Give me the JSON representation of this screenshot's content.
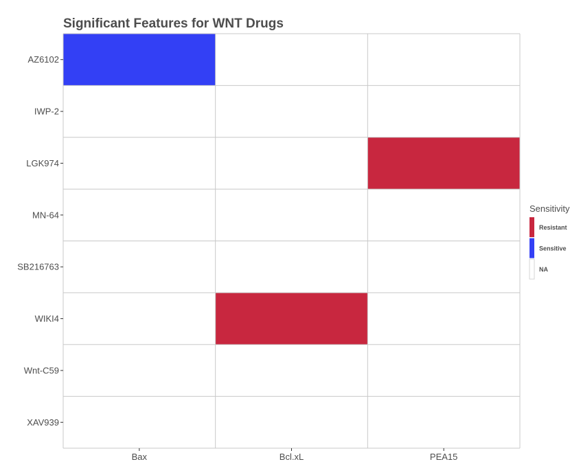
{
  "chart_data": {
    "type": "heatmap",
    "title": "Significant Features for WNT Drugs",
    "xlabel": "",
    "ylabel": "",
    "x_categories": [
      "Bax",
      "Bcl.xL",
      "PEA15"
    ],
    "y_categories": [
      "AZ6102",
      "IWP-2",
      "LGK974",
      "MN-64",
      "SB216763",
      "WIKI4",
      "Wnt-C59",
      "XAV939"
    ],
    "cells": [
      [
        "Sensitive",
        "NA",
        "NA"
      ],
      [
        "NA",
        "NA",
        "NA"
      ],
      [
        "NA",
        "NA",
        "Resistant"
      ],
      [
        "NA",
        "NA",
        "NA"
      ],
      [
        "NA",
        "NA",
        "NA"
      ],
      [
        "NA",
        "Resistant",
        "NA"
      ],
      [
        "NA",
        "NA",
        "NA"
      ],
      [
        "NA",
        "NA",
        "NA"
      ]
    ],
    "legend": {
      "title": "Sensitivity",
      "position": "right",
      "items": [
        {
          "label": "Resistant",
          "color": "#c8273f"
        },
        {
          "label": "Sensitive",
          "color": "#3340f5"
        },
        {
          "label": "NA",
          "color": "#ffffff"
        }
      ]
    },
    "grid": true,
    "grid_color": "#c8c8c8"
  }
}
